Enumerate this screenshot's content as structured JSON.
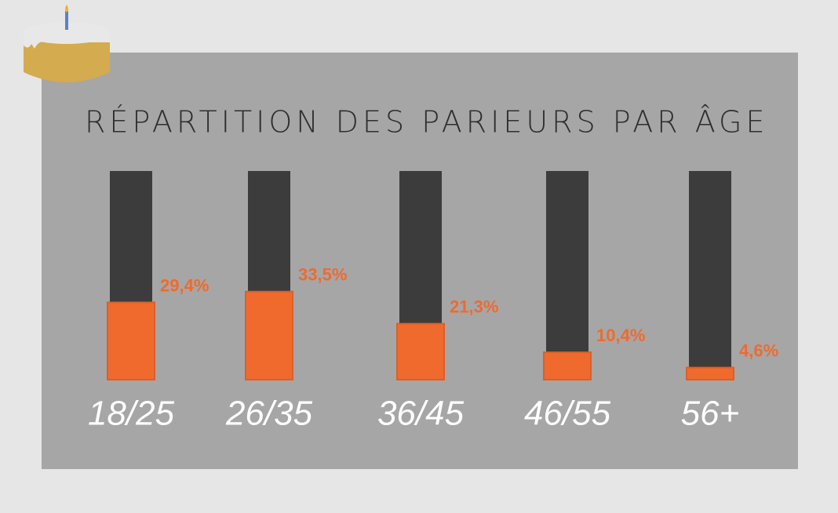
{
  "chart_data": {
    "type": "bar",
    "title": "RÉPARTITION DES PARIEURS PAR ÂGE",
    "categories": [
      "18/25",
      "26/35",
      "36/45",
      "46/55",
      "56+"
    ],
    "values": [
      29.4,
      33.5,
      21.3,
      10.4,
      4.6
    ],
    "value_labels": [
      "29,4%",
      "33,5%",
      "21,3%",
      "10,4%",
      "4,6%"
    ],
    "color": "#f06a2e"
  }
}
